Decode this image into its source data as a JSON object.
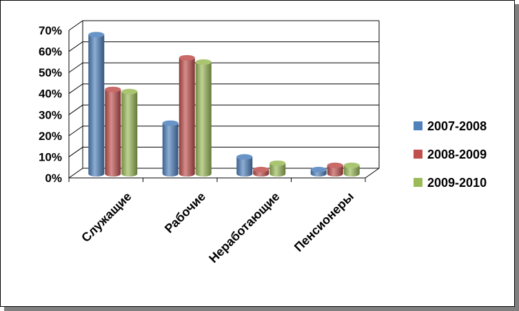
{
  "chart_data": {
    "type": "bar",
    "categories": [
      "Служащие",
      "Рабочие",
      "Неработающие",
      "Пенсионеры"
    ],
    "series": [
      {
        "name": "2007-2008",
        "values": [
          0.66,
          0.24,
          0.08,
          0.02
        ],
        "color": "#4f81bd"
      },
      {
        "name": "2008-2009",
        "values": [
          0.4,
          0.55,
          0.02,
          0.04
        ],
        "color": "#c0504d"
      },
      {
        "name": "2009-2010",
        "values": [
          0.39,
          0.53,
          0.05,
          0.04
        ],
        "color": "#9bbb59"
      }
    ],
    "yticks": [
      "0%",
      "10%",
      "20%",
      "30%",
      "40%",
      "50%",
      "60%",
      "70%"
    ],
    "ylim": [
      0,
      0.7
    ],
    "grid": true,
    "legend_position": "right",
    "style": "3d-cylinder"
  }
}
